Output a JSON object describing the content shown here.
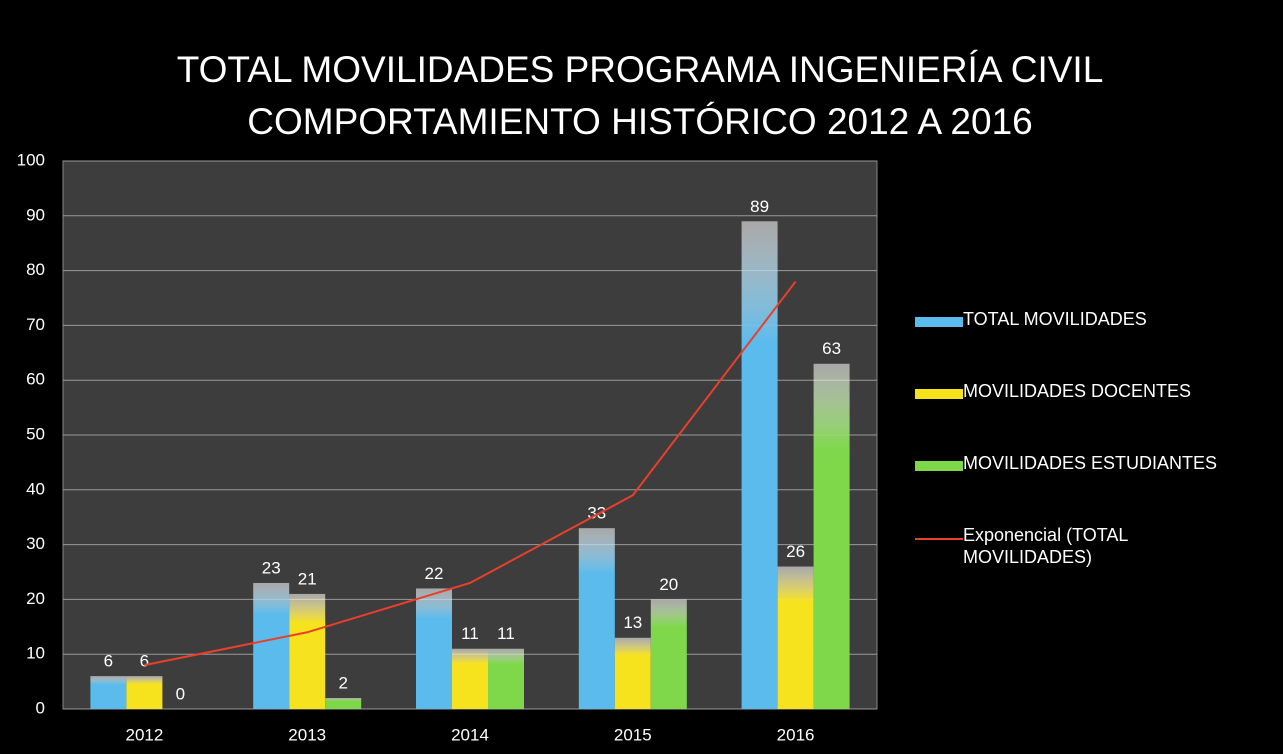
{
  "chart_data": {
    "type": "bar",
    "title": [
      "TOTAL MOVILIDADES PROGRAMA INGENIERÍA CIVIL",
      "COMPORTAMIENTO HISTÓRICO 2012 A 2016"
    ],
    "categories": [
      "2012",
      "2013",
      "2014",
      "2015",
      "2016"
    ],
    "series": [
      {
        "name": "TOTAL MOVILIDADES",
        "color": "#5bbbec",
        "values": [
          6,
          23,
          22,
          33,
          89
        ]
      },
      {
        "name": "MOVILIDADES DOCENTES",
        "color": "#f7e21e",
        "values": [
          6,
          21,
          11,
          13,
          26
        ]
      },
      {
        "name": "MOVILIDADES ESTUDIANTES",
        "color": "#7fd84a",
        "values": [
          0,
          2,
          11,
          20,
          63
        ]
      },
      {
        "name": "Exponencial (TOTAL MOVILIDADES)",
        "type": "line",
        "color": "#e8402a",
        "values": [
          8,
          14,
          23,
          39,
          78
        ]
      }
    ],
    "ylim": [
      0,
      100
    ],
    "yticks": [
      0,
      10,
      20,
      30,
      40,
      50,
      60,
      70,
      80,
      90,
      100
    ],
    "grid": true,
    "legend": "right"
  }
}
